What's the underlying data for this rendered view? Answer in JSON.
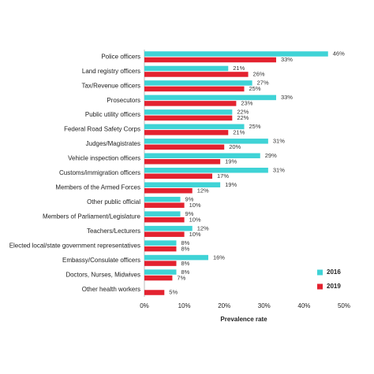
{
  "chart_data": {
    "type": "bar",
    "orientation": "horizontal",
    "x_label": "Prevalence rate",
    "categories": [
      "Police officers",
      "Land registry officers",
      "Tax/Revenue officers",
      "Prosecutors",
      "Public utility officers",
      "Federal Road Safety Corps",
      "Judges/Magistrates",
      "Vehicle inspection officers",
      "Customs/immigration officers",
      "Members of the Armed Forces",
      "Other public official",
      "Members of Parliament/Legislature",
      "Teachers/Lecturers",
      "Elected local/state government representatives",
      "Embassy/Consulate officers",
      "Doctors, Nurses, Midwives",
      "Other health workers"
    ],
    "series": [
      {
        "name": "2016",
        "color": "#3fd3d6",
        "values": [
          46,
          21,
          27,
          33,
          22,
          25,
          31,
          29,
          31,
          19,
          9,
          9,
          12,
          8,
          16,
          8,
          null
        ],
        "value_labels": [
          "46%",
          "21%",
          "27%",
          "33%",
          "22%",
          "25%",
          "31%",
          "29%",
          "31%",
          "19%",
          "9%",
          "9%",
          "12%",
          "8%",
          "16%",
          "8%",
          null
        ]
      },
      {
        "name": "2019",
        "color": "#e3222f",
        "values": [
          33,
          26,
          25,
          23,
          22,
          21,
          20,
          19,
          17,
          12,
          10,
          10,
          10,
          8,
          8,
          7,
          5
        ],
        "value_labels": [
          "33%",
          "26%",
          "25%",
          "23%",
          "22%",
          "21%",
          "20%",
          "19%",
          "17%",
          "12%",
          "10%",
          "10%",
          "10%",
          "8%",
          "8%",
          "7%",
          "5%"
        ]
      }
    ],
    "xlim": [
      0,
      50
    ],
    "xticks": [
      {
        "value": 0,
        "label": "0%"
      },
      {
        "value": 10,
        "label": "10%"
      },
      {
        "value": 20,
        "label": "20%"
      },
      {
        "value": 30,
        "label": "30%"
      },
      {
        "value": 40,
        "label": "40%"
      },
      {
        "value": 50,
        "label": "50%"
      }
    ],
    "legend": "bottom-right"
  }
}
